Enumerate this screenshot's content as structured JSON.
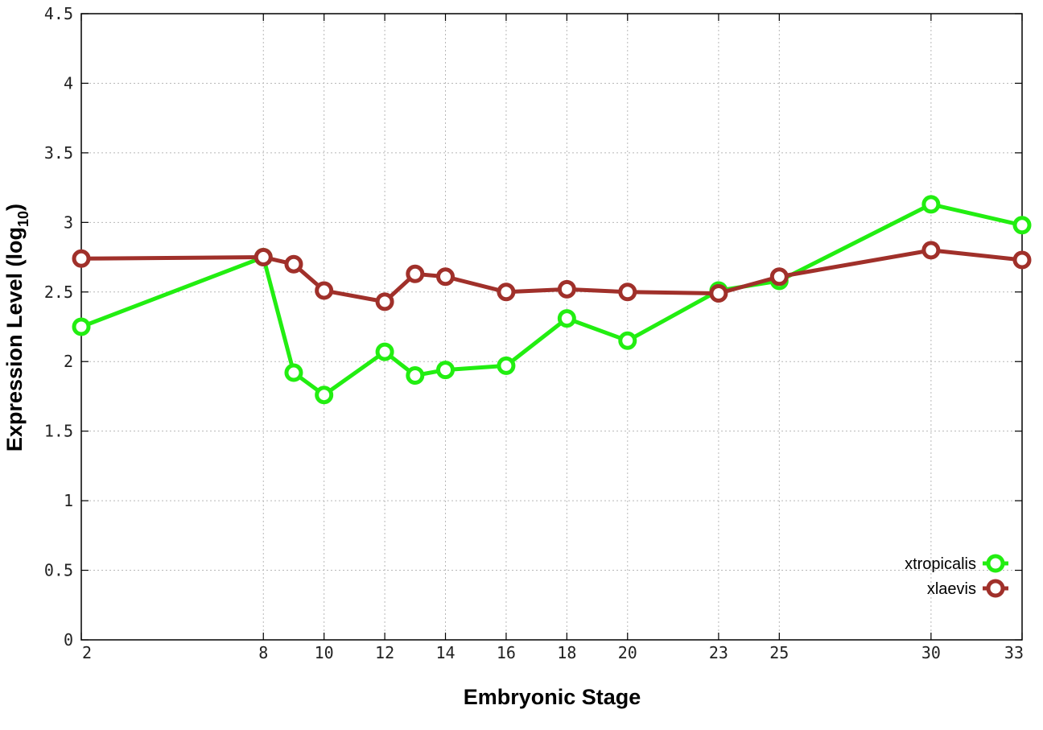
{
  "chart_data": {
    "type": "line",
    "title": "",
    "xlabel": "Embryonic Stage",
    "ylabel_main": "Expression Level (log",
    "ylabel_sub": "10",
    "ylabel_close": ")",
    "xlim": [
      2,
      33
    ],
    "ylim": [
      0,
      4.5
    ],
    "x_ticks": [
      2,
      8,
      10,
      12,
      14,
      16,
      18,
      20,
      23,
      25,
      30,
      33
    ],
    "x_tick_labels": [
      "2",
      "8",
      "10",
      "12",
      "14",
      "16",
      "18",
      "20",
      "23",
      "25",
      "30",
      "33"
    ],
    "y_ticks": [
      0,
      0.5,
      1,
      1.5,
      2,
      2.5,
      3,
      3.5,
      4,
      4.5
    ],
    "y_tick_labels": [
      "0",
      "0.5",
      "1",
      "1.5",
      "2",
      "2.5",
      "3",
      "3.5",
      "4",
      "4.5"
    ],
    "grid": true,
    "legend_position": "bottom-right",
    "series": [
      {
        "name": "xtropicalis",
        "color": "#22ee11",
        "x": [
          2,
          8,
          9,
          10,
          12,
          13,
          14,
          16,
          18,
          20,
          23,
          25,
          30,
          33
        ],
        "y": [
          2.25,
          2.75,
          1.92,
          1.76,
          2.07,
          1.9,
          1.94,
          1.97,
          2.31,
          2.15,
          2.51,
          2.58,
          3.13,
          2.98
        ]
      },
      {
        "name": "xlaevis",
        "color": "#a0302a",
        "x": [
          2,
          8,
          9,
          10,
          12,
          13,
          14,
          16,
          18,
          20,
          23,
          25,
          30,
          33
        ],
        "y": [
          2.74,
          2.75,
          2.7,
          2.51,
          2.43,
          2.63,
          2.61,
          2.5,
          2.52,
          2.5,
          2.49,
          2.61,
          2.8,
          2.73
        ]
      }
    ]
  }
}
